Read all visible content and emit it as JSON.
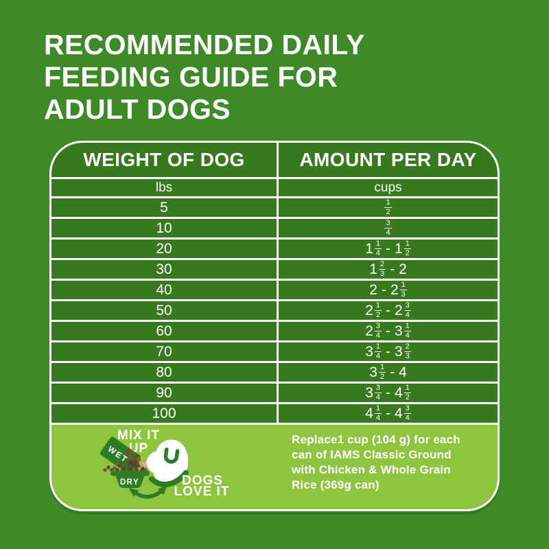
{
  "title": {
    "lines": [
      "RECOMMENDED DAILY",
      "FEEDING GUIDE FOR",
      "ADULT DOGS"
    ]
  },
  "table": {
    "headers": [
      "WEIGHT OF DOG",
      "AMOUNT PER DAY"
    ],
    "units": [
      "lbs",
      "cups"
    ],
    "rows": [
      {
        "weight": "5",
        "amount": "1/2"
      },
      {
        "weight": "10",
        "amount": "3/4"
      },
      {
        "weight": "20",
        "amount": "1 1/4 - 1 1/2"
      },
      {
        "weight": "30",
        "amount": "1 2/3 - 2"
      },
      {
        "weight": "40",
        "amount": "2 - 2 1/3"
      },
      {
        "weight": "50",
        "amount": "2 1/2 - 2 3/4"
      },
      {
        "weight": "60",
        "amount": "2 3/4 - 3 1/4"
      },
      {
        "weight": "70",
        "amount": "3 1/4 - 3 2/3"
      },
      {
        "weight": "80",
        "amount": "3 1/2 - 4"
      },
      {
        "weight": "90",
        "amount": "3 3/4 - 4 1/2"
      },
      {
        "weight": "100",
        "amount": "4 1/4 - 4 3/4"
      }
    ]
  },
  "footer": {
    "mix_it": "MIX IT",
    "up": "UP",
    "wet": "WET",
    "dry": "DRY",
    "dogs": "DOGS",
    "love_it": "LOVE IT",
    "note_lines": [
      "Replace1 cup (104 g) for each",
      "can of IAMS Classic Ground",
      "with Chicken & Whole Grain",
      "Rice (369g can)"
    ]
  },
  "colors": {
    "page-bg": "#3E8928",
    "cell-green": "#38791F",
    "panel-green": "#8DC63E",
    "art-green": "#2E7D26",
    "kibble-brown": "#6E452E",
    "tongue-pink": "#F09A90"
  }
}
